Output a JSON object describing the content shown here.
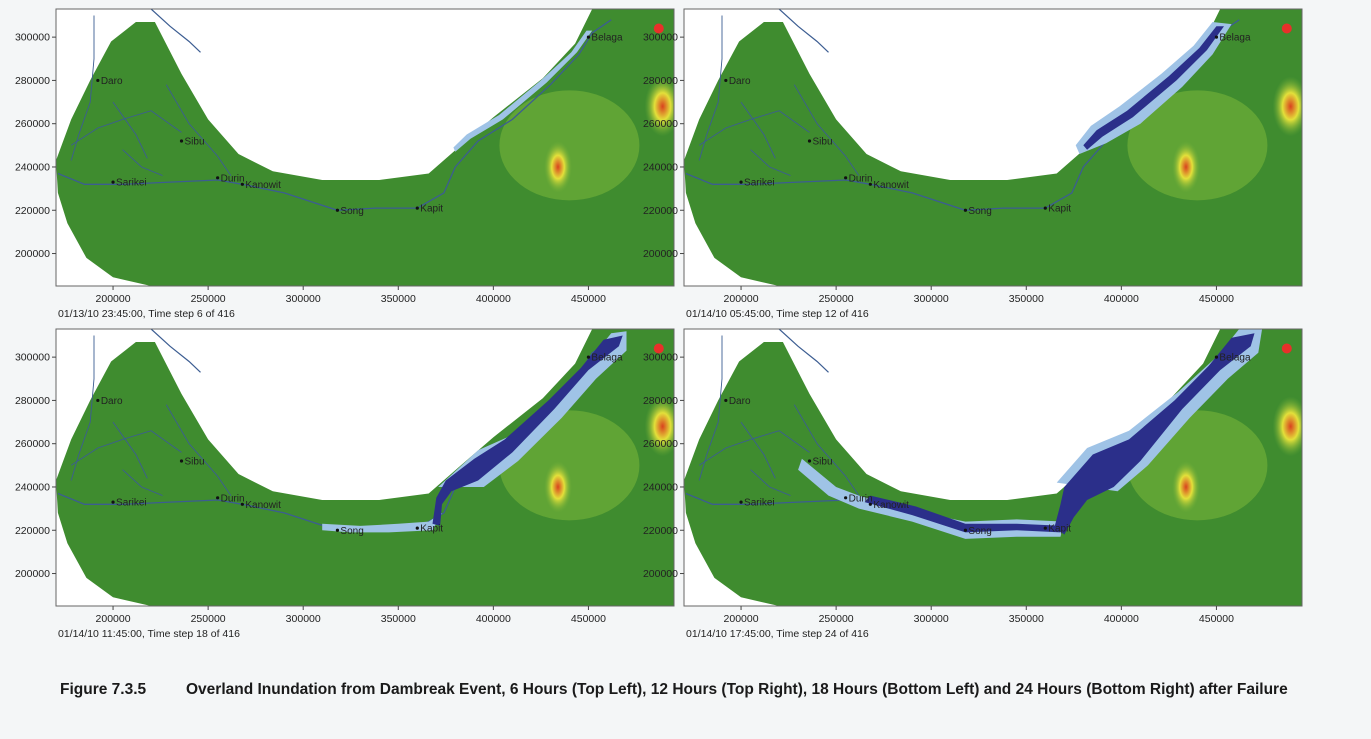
{
  "axes": {
    "x_ticks": [
      "200000",
      "250000",
      "300000",
      "350000",
      "400000",
      "450000"
    ],
    "x_values": [
      200000,
      250000,
      300000,
      350000,
      400000,
      450000
    ],
    "y_ticks": [
      "300000",
      "280000",
      "260000",
      "240000",
      "220000",
      "200000"
    ],
    "y_values": [
      300000,
      280000,
      260000,
      240000,
      220000,
      200000
    ],
    "xlim": [
      170000,
      495000
    ],
    "ylim": [
      185000,
      313000
    ]
  },
  "towns": [
    {
      "name": "Daro",
      "x": 192000,
      "y": 280000
    },
    {
      "name": "Sibu",
      "x": 236000,
      "y": 252000
    },
    {
      "name": "Sarikei",
      "x": 200000,
      "y": 233000
    },
    {
      "name": "Durin",
      "x": 255000,
      "y": 235000
    },
    {
      "name": "Kanowit",
      "x": 268000,
      "y": 232000
    },
    {
      "name": "Song",
      "x": 318000,
      "y": 220000
    },
    {
      "name": "Kapit",
      "x": 360000,
      "y": 221000
    },
    {
      "name": "Belaga",
      "x": 450000,
      "y": 300000
    }
  ],
  "colors": {
    "terrain": "#3f8c2f",
    "terrain_light": "#6fae38",
    "highland": "#e3e03a",
    "peak": "#d9421e",
    "flood_deep": "#2b2f8a",
    "flood_shallow": "#9fc3e6",
    "river": "#3c5d92",
    "dam": "#e8302a"
  },
  "panels": [
    {
      "caption": "01/13/10 23:45:00, Time step 6 of 416"
    },
    {
      "caption": "01/14/10 05:45:00, Time step 12 of 416"
    },
    {
      "caption": "01/14/10 11:45:00, Time step 18 of 416"
    },
    {
      "caption": "01/14/10 17:45:00, Time step 24 of 416"
    }
  ],
  "figure": {
    "label": "Figure 7.3.5",
    "text": "Overland Inundation from Dambreak Event, 6 Hours (Top Left), 12 Hours (Top Right), 18 Hours (Bottom Left) and 24 Hours (Bottom Right) after Failure"
  }
}
